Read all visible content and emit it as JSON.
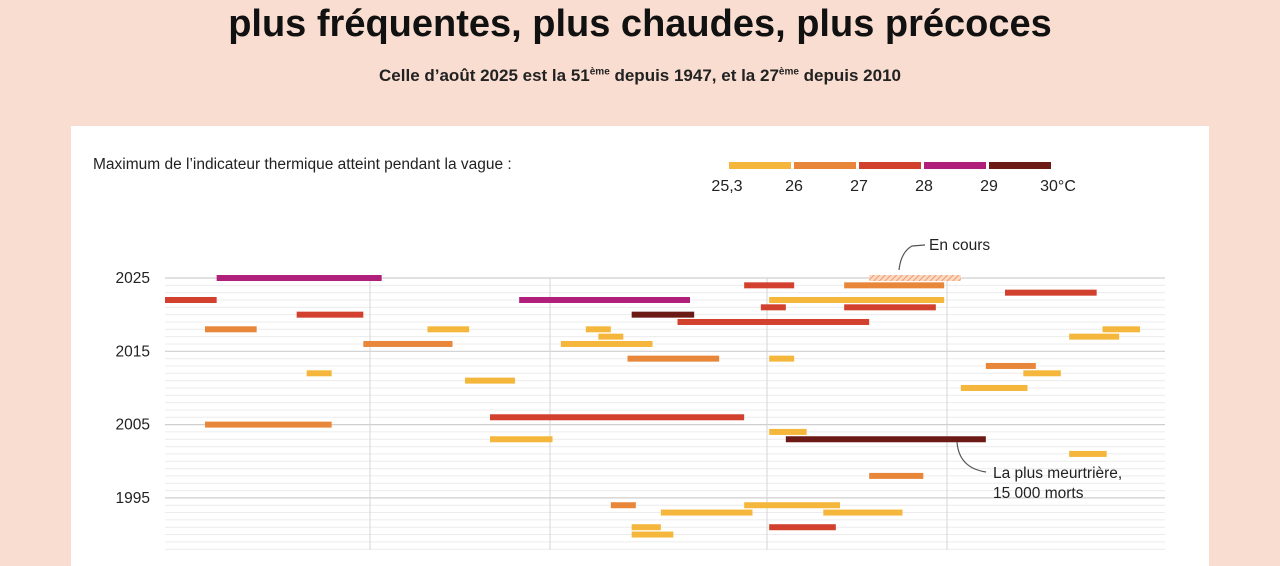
{
  "header": {
    "title": "plus fréquentes, plus chaudes, plus précoces",
    "subtitle_a": "Celle d’août 2025 est la 51",
    "subtitle_sup1": "ème",
    "subtitle_b": " depuis 1947, et la 27",
    "subtitle_sup2": "ème",
    "subtitle_c": " depuis 2010"
  },
  "legend": {
    "title": "Maximum de l’indicateur thermique atteint pendant la vague :",
    "labels": [
      "25,3",
      "26",
      "27",
      "28",
      "29",
      "30°C"
    ],
    "colors": [
      "#f5b73b",
      "#e8873a",
      "#d2402e",
      "#b0207a",
      "#6b1a16"
    ]
  },
  "annotations": {
    "en_cours": "En cours",
    "meurtriere_line1": "La plus meurtrière,",
    "meurtriere_line2": "15 000 morts"
  },
  "chart_data": {
    "type": "timeline",
    "y_ticks": [
      "2025",
      "2015",
      "2005",
      "1995"
    ],
    "y_tick_values": [
      2025,
      2015,
      2005,
      1995
    ],
    "y_range": [
      1990,
      2026
    ],
    "x_unit": "day of summer (start of June = 0)",
    "x_range": [
      0,
      120
    ],
    "color_classes": [
      "25,3-26",
      "26-27",
      "27-28",
      "28-29",
      "29-30"
    ],
    "waves": [
      {
        "year": 2025,
        "start": 6.2,
        "end": 26,
        "class": 3
      },
      {
        "year": 2025,
        "start": 84.5,
        "end": 95.5,
        "class": 0,
        "ongoing": true
      },
      {
        "year": 2024,
        "start": 69.5,
        "end": 75.5,
        "class": 2
      },
      {
        "year": 2024,
        "start": 81.5,
        "end": 93.5,
        "class": 1
      },
      {
        "year": 2023,
        "start": 100.8,
        "end": 111.8,
        "class": 2
      },
      {
        "year": 2022,
        "start": 0,
        "end": 6.2,
        "class": 2
      },
      {
        "year": 2022,
        "start": 42.5,
        "end": 63,
        "class": 3
      },
      {
        "year": 2022,
        "start": 72.5,
        "end": 93.5,
        "class": 0
      },
      {
        "year": 2021,
        "start": 71.5,
        "end": 74.5,
        "class": 2
      },
      {
        "year": 2021,
        "start": 81.5,
        "end": 92.5,
        "class": 2
      },
      {
        "year": 2020,
        "start": 15.8,
        "end": 23.8,
        "class": 2
      },
      {
        "year": 2020,
        "start": 56,
        "end": 63.5,
        "class": 4
      },
      {
        "year": 2019,
        "start": 61.5,
        "end": 84.5,
        "class": 2
      },
      {
        "year": 2018,
        "start": 4.8,
        "end": 11,
        "class": 1
      },
      {
        "year": 2018,
        "start": 31.5,
        "end": 36.5,
        "class": 0
      },
      {
        "year": 2018,
        "start": 50.5,
        "end": 53.5,
        "class": 0
      },
      {
        "year": 2018,
        "start": 112.5,
        "end": 117,
        "class": 0
      },
      {
        "year": 2017,
        "start": 52,
        "end": 55,
        "class": 0
      },
      {
        "year": 2017,
        "start": 108.5,
        "end": 114.5,
        "class": 0
      },
      {
        "year": 2016,
        "start": 23.8,
        "end": 34.5,
        "class": 1
      },
      {
        "year": 2016,
        "start": 47.5,
        "end": 58.5,
        "class": 0
      },
      {
        "year": 2014,
        "start": 55.5,
        "end": 66.5,
        "class": 1
      },
      {
        "year": 2014,
        "start": 72.5,
        "end": 75.5,
        "class": 0
      },
      {
        "year": 2013,
        "start": 98.5,
        "end": 104.5,
        "class": 1
      },
      {
        "year": 2012,
        "start": 17,
        "end": 20,
        "class": 0
      },
      {
        "year": 2012,
        "start": 103,
        "end": 107.5,
        "class": 0
      },
      {
        "year": 2011,
        "start": 36,
        "end": 42,
        "class": 0
      },
      {
        "year": 2010,
        "start": 95.5,
        "end": 103.5,
        "class": 0
      },
      {
        "year": 2006,
        "start": 39,
        "end": 69.5,
        "class": 2
      },
      {
        "year": 2005,
        "start": 4.8,
        "end": 20,
        "class": 1
      },
      {
        "year": 2004,
        "start": 72.5,
        "end": 77,
        "class": 0
      },
      {
        "year": 2003,
        "start": 39,
        "end": 46.5,
        "class": 0
      },
      {
        "year": 2003,
        "start": 74.5,
        "end": 98.5,
        "class": 4
      },
      {
        "year": 2001,
        "start": 108.5,
        "end": 113,
        "class": 0
      },
      {
        "year": 1998,
        "start": 84.5,
        "end": 91,
        "class": 1
      },
      {
        "year": 1994,
        "start": 53.5,
        "end": 56.5,
        "class": 1
      },
      {
        "year": 1994,
        "start": 69.5,
        "end": 81,
        "class": 0
      },
      {
        "year": 1993,
        "start": 59.5,
        "end": 70.5,
        "class": 0
      },
      {
        "year": 1993,
        "start": 79,
        "end": 88.5,
        "class": 0
      },
      {
        "year": 1991,
        "start": 56,
        "end": 59.5,
        "class": 0
      },
      {
        "year": 1991,
        "start": 72.5,
        "end": 80.5,
        "class": 2
      },
      {
        "year": 1990,
        "start": 56,
        "end": 61,
        "class": 0
      }
    ]
  }
}
